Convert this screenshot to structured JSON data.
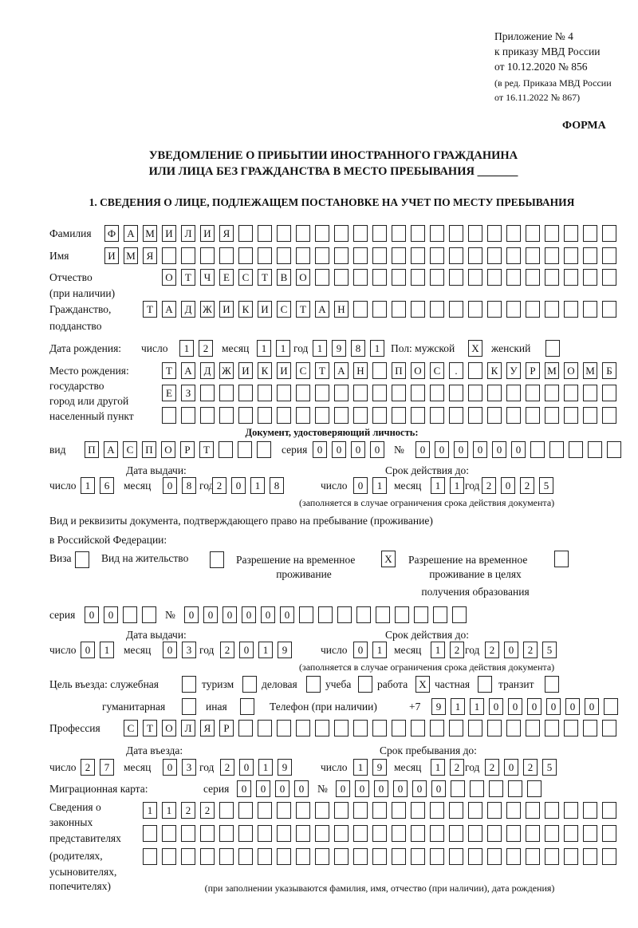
{
  "header": {
    "annex": "Приложение № 4",
    "order": "к приказу МВД России",
    "order_date": "от 10.12.2020 № 856",
    "edition1": "(в ред. Приказа МВД России",
    "edition2": "от 16.11.2022 № 867)",
    "form": "ФОРМА",
    "title1": "УВЕДОМЛЕНИЕ О ПРИБЫТИИ ИНОСТРАННОГО ГРАЖДАНИНА",
    "title2": "ИЛИ ЛИЦА БЕЗ ГРАЖДАНСТВА В МЕСТО ПРЕБЫВАНИЯ _______",
    "section1": "1. СВЕДЕНИЯ О ЛИЦЕ, ПОДЛЕЖАЩЕМ ПОСТАНОВКЕ НА УЧЕТ ПО МЕСТУ ПРЕБЫВАНИЯ"
  },
  "labels": {
    "surname": "Фамилия",
    "name": "Имя",
    "patronymic": "Отчество",
    "if_any": "(при наличии)",
    "citizenship1": "Гражданство,",
    "citizenship2": "подданство",
    "birth_date": "Дата рождения:",
    "day": "число",
    "month": "месяц",
    "year": "год",
    "sex": "Пол: мужской",
    "female": "женский",
    "birthplace1": "Место рождения:",
    "birthplace2": "государство",
    "birthplace3": "город или другой",
    "birthplace4": "населенный пункт",
    "id_doc": "Документ, удостоверяющий личность:",
    "kind": "вид",
    "series": "серия",
    "number": "№",
    "issue_date": "Дата выдачи:",
    "valid_until": "Срок действия до:",
    "validity_note": "(заполняется в случае ограничения срока действия документа)",
    "right_doc1": "Вид и реквизиты документа, подтверждающего право на пребывание (проживание)",
    "right_doc2": "в Российской Федерации:",
    "visa": "Виза",
    "residence": "Вид на жительство",
    "trp1": "Разрешение на временное",
    "trp2": "проживание",
    "trp_edu1": "Разрешение на временное",
    "trp_edu2": "проживание в целях",
    "trp_edu3": "получения образования",
    "purpose": "Цель въезда: служебная",
    "tourism": "туризм",
    "business": "деловая",
    "study": "учеба",
    "work": "работа",
    "private": "частная",
    "transit": "транзит",
    "humanitarian": "гуманитарная",
    "other": "иная",
    "phone": "Телефон (при наличии)",
    "phone_prefix": "+7",
    "profession": "Профессия",
    "entry_date": "Дата въезда:",
    "stay_until": "Срок пребывания до:",
    "migration_card": "Миграционная карта:",
    "reps1": "Сведения о",
    "reps2": "законных",
    "reps3": "представителях",
    "reps4": "(родителях,",
    "reps5": "усыновителях,",
    "reps6": "попечителях)",
    "reps_note": "(при заполнении указываются фамилия, имя, отчество (при наличии), дата рождения)"
  },
  "person": {
    "surname": "ФАМИЛИЯ",
    "name": "ИМЯ",
    "patronymic": "ОТЧЕСТВО",
    "citizenship": "ТАДЖИКИСТАН",
    "birth_day": "12",
    "birth_month": "11",
    "birth_year": "1981",
    "sex_male": "X",
    "sex_female": "",
    "birthplace_row1": "ТАДЖИКИСТАН ПОС. КУРМОМБ",
    "birthplace_row2": "ЕЗ",
    "birthplace_row3": ""
  },
  "id_document": {
    "kind": "ПАСПОРТ",
    "series": "0000",
    "number": "000000",
    "issue_day": "16",
    "issue_month": "08",
    "issue_year": "2018",
    "valid_day": "01",
    "valid_month": "11",
    "valid_year": "2025"
  },
  "stay_document": {
    "visa": "",
    "residence_permit": "",
    "temporary_residence": "X",
    "temporary_residence_edu": "",
    "series": "00",
    "number": "000000",
    "issue_day": "01",
    "issue_month": "03",
    "issue_year": "2019",
    "valid_day": "01",
    "valid_month": "12",
    "valid_year": "2025"
  },
  "purpose": {
    "official": "",
    "tourism": "",
    "business": "",
    "study": "",
    "work": "X",
    "private": "",
    "transit": "",
    "humanitarian": "",
    "other": ""
  },
  "phone": "911000000",
  "profession": "СТОЛЯР",
  "entry": {
    "entry_day": "27",
    "entry_month": "03",
    "entry_year": "2019",
    "stay_day": "19",
    "stay_month": "12",
    "stay_year": "2025"
  },
  "migration_card": {
    "series": "0000",
    "number": "000000"
  },
  "representatives": {
    "row1": "1122",
    "row2": "",
    "row3": ""
  }
}
